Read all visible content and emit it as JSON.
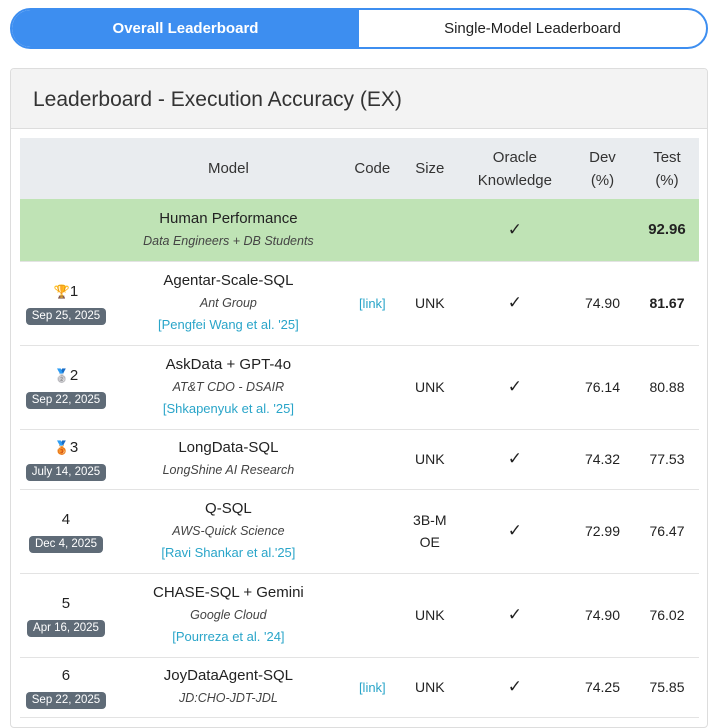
{
  "tabs": {
    "overall": "Overall Leaderboard",
    "single": "Single-Model Leaderboard"
  },
  "title": "Leaderboard - Execution Accuracy (EX)",
  "headers": {
    "model": "Model",
    "code": "Code",
    "size": "Size",
    "oracle": "Oracle Knowledge",
    "dev": "Dev (%)",
    "test": "Test (%)"
  },
  "human": {
    "name": "Human Performance",
    "org": "Data Engineers + DB Students",
    "oracle": "✓",
    "test": "92.96"
  },
  "rows": [
    {
      "icon": "🏆",
      "rank": "1",
      "date": "Sep 25, 2025",
      "name": "Agentar-Scale-SQL",
      "org": "Ant Group",
      "cite": "[Pengfei Wang et al. '25]",
      "code": "[link]",
      "size": "UNK",
      "oracle": "✓",
      "dev": "74.90",
      "test": "81.67"
    },
    {
      "icon": "🥈",
      "rank": "2",
      "date": "Sep 22, 2025",
      "name": "AskData + GPT-4o",
      "org": "AT&T CDO - DSAIR",
      "cite": "[Shkapenyuk et al. '25]",
      "code": "",
      "size": "UNK",
      "oracle": "✓",
      "dev": "76.14",
      "test": "80.88"
    },
    {
      "icon": "🥉",
      "rank": "3",
      "date": "July 14, 2025",
      "name": "LongData-SQL",
      "org": "LongShine AI Research",
      "cite": "",
      "code": "",
      "size": "UNK",
      "oracle": "✓",
      "dev": "74.32",
      "test": "77.53"
    },
    {
      "icon": "",
      "rank": "4",
      "date": "Dec 4, 2025",
      "name": "Q-SQL",
      "org": "AWS-Quick Science",
      "cite": "[Ravi Shankar et al.'25]",
      "code": "",
      "size": "3B-MOE",
      "oracle": "✓",
      "dev": "72.99",
      "test": "76.47"
    },
    {
      "icon": "",
      "rank": "5",
      "date": "Apr 16, 2025",
      "name": "CHASE-SQL + Gemini",
      "org": "Google Cloud",
      "cite": "[Pourreza et al. '24]",
      "code": "",
      "size": "UNK",
      "oracle": "✓",
      "dev": "74.90",
      "test": "76.02"
    },
    {
      "icon": "",
      "rank": "6",
      "date": "Sep 22, 2025",
      "name": "JoyDataAgent-SQL",
      "org": "JD:CHO-JDT-JDL",
      "cite": "",
      "code": "[link]",
      "size": "UNK",
      "oracle": "✓",
      "dev": "74.25",
      "test": "75.85"
    }
  ]
}
